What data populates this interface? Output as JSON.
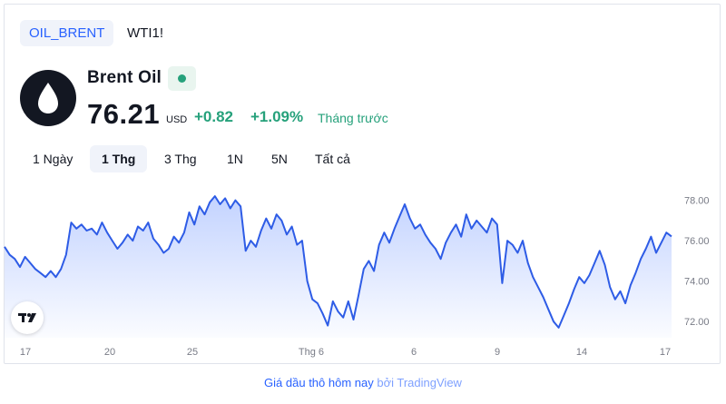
{
  "symbol_tabs": [
    {
      "label": "OIL_BRENT",
      "active": true
    },
    {
      "label": "WTI1!",
      "active": false
    }
  ],
  "instrument": {
    "name": "Brent Oil",
    "logo_icon": "oil-drop-icon",
    "price": "76.21",
    "currency": "USD",
    "change": "+0.82",
    "change_pct": "+1.09%",
    "period": "Tháng trước"
  },
  "range_tabs": [
    {
      "label": "1 Ngày",
      "active": false
    },
    {
      "label": "1 Thg",
      "active": true
    },
    {
      "label": "3 Thg",
      "active": false
    },
    {
      "label": "1N",
      "active": false
    },
    {
      "label": "5N",
      "active": false
    },
    {
      "label": "Tất cả",
      "active": false
    }
  ],
  "colors": {
    "accent": "#2962ff",
    "positive": "#26a17b",
    "line": "#2e5ce6"
  },
  "chart_data": {
    "type": "area",
    "x_tick_labels": [
      "17",
      "20",
      "25",
      "Thg 6",
      "6",
      "9",
      "14",
      "17"
    ],
    "y_tick_labels": [
      "78.00",
      "76.00",
      "74.00",
      "72.00"
    ],
    "ylim": [
      71.2,
      78.7
    ],
    "grid": false,
    "series": [
      {
        "values": [
          75.7,
          75.3,
          75.1,
          74.7,
          75.2,
          74.9,
          74.6,
          74.4,
          74.2,
          74.5,
          74.2,
          74.6,
          75.3,
          76.9,
          76.6,
          76.8,
          76.5,
          76.6,
          76.3,
          76.9,
          76.4,
          76.0,
          75.6,
          75.9,
          76.3,
          76.0,
          76.7,
          76.5,
          76.9,
          76.1,
          75.8,
          75.4,
          75.6,
          76.2,
          75.9,
          76.4,
          77.4,
          76.8,
          77.7,
          77.3,
          77.9,
          78.2,
          77.8,
          78.1,
          77.6,
          78.0,
          77.7,
          75.5,
          76.0,
          75.7,
          76.5,
          77.1,
          76.6,
          77.3,
          77.0,
          76.3,
          76.7,
          75.8,
          76.0,
          74.0,
          73.1,
          72.9,
          72.4,
          71.8,
          73.0,
          72.5,
          72.2,
          73.0,
          72.1,
          73.3,
          74.6,
          75.0,
          74.5,
          75.8,
          76.4,
          75.9,
          76.6,
          77.2,
          77.8,
          77.1,
          76.6,
          76.8,
          76.3,
          75.9,
          75.6,
          75.1,
          75.9,
          76.4,
          76.8,
          76.2,
          77.3,
          76.6,
          77.0,
          76.7,
          76.4,
          77.1,
          76.8,
          73.9,
          76.0,
          75.8,
          75.4,
          76.0,
          74.9,
          74.2,
          73.7,
          73.2,
          72.6,
          72.0,
          71.7,
          72.3,
          72.9,
          73.6,
          74.2,
          73.9,
          74.3,
          74.9,
          75.5,
          74.8,
          73.7,
          73.1,
          73.5,
          72.9,
          73.8,
          74.4,
          75.1,
          75.6,
          76.2,
          75.4,
          75.9,
          76.4,
          76.21
        ]
      }
    ]
  },
  "tradingview_logo_icon": "tradingview-logo-icon",
  "footer": {
    "part1": "Giá dầu thô hôm nay",
    "part2": "bởi TradingView"
  }
}
